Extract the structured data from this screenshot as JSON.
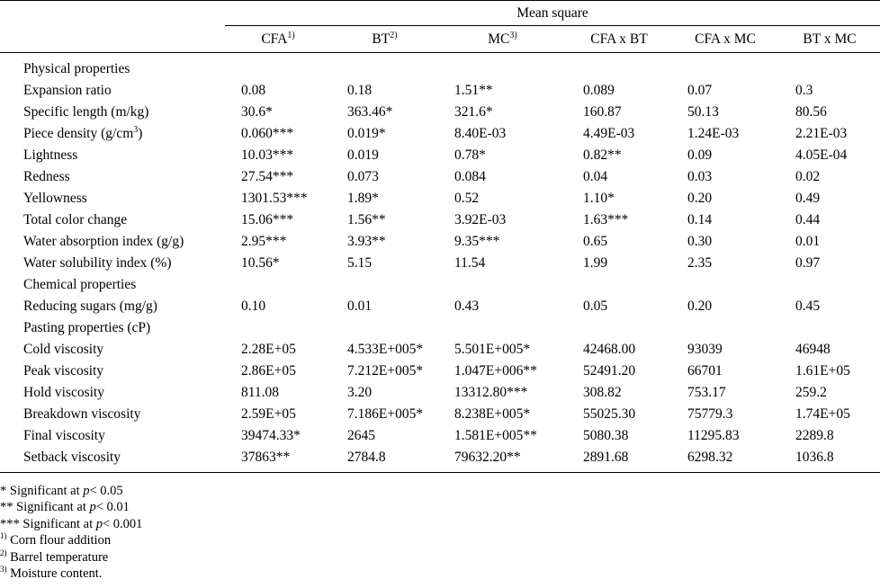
{
  "header": {
    "span_label": "Mean square",
    "columns": [
      {
        "label": "CFA",
        "sup": "1)"
      },
      {
        "label": "BT",
        "sup": "2)"
      },
      {
        "label": "MC",
        "sup": "3)"
      },
      {
        "label": "CFA x BT",
        "sup": ""
      },
      {
        "label": "CFA x MC",
        "sup": ""
      },
      {
        "label": "BT x MC",
        "sup": ""
      }
    ]
  },
  "rows": [
    {
      "label": "Physical properties",
      "section": true,
      "values": [
        "",
        "",
        "",
        "",
        "",
        ""
      ]
    },
    {
      "label": "Expansion ratio",
      "values": [
        "0.08",
        "0.18",
        "1.51**",
        "0.089",
        "0.07",
        "0.3"
      ]
    },
    {
      "label": "Specific length (m/kg)",
      "values": [
        "30.6*",
        "363.46*",
        "321.6*",
        "160.87",
        "50.13",
        "80.56"
      ]
    },
    {
      "label": "Piece density (g/cm",
      "label_sup": "3",
      "label_tail": ")",
      "values": [
        "0.060***",
        "0.019*",
        "8.40E-03",
        "4.49E-03",
        "1.24E-03",
        "2.21E-03"
      ]
    },
    {
      "label": "Lightness",
      "values": [
        "10.03***",
        "0.019",
        "0.78*",
        "0.82**",
        "0.09",
        "4.05E-04"
      ]
    },
    {
      "label": "Redness",
      "values": [
        "27.54***",
        "0.073",
        "0.084",
        "0.04",
        "0.03",
        "0.02"
      ]
    },
    {
      "label": "Yellowness",
      "values": [
        "1301.53***",
        "1.89*",
        "0.52",
        "1.10*",
        "0.20",
        "0.49"
      ]
    },
    {
      "label": "Total color change",
      "values": [
        "15.06***",
        "1.56**",
        "3.92E-03",
        "1.63***",
        "0.14",
        "0.44"
      ]
    },
    {
      "label": "Water absorption index (g/g)",
      "values": [
        "2.95***",
        "3.93**",
        "9.35***",
        "0.65",
        "0.30",
        "0.01"
      ]
    },
    {
      "label": "Water solubility index (%)",
      "values": [
        "10.56*",
        "5.15",
        "11.54",
        "1.99",
        "2.35",
        "0.97"
      ]
    },
    {
      "label": "Chemical properties",
      "section": true,
      "values": [
        "",
        "",
        "",
        "",
        "",
        ""
      ]
    },
    {
      "label": "Reducing sugars (mg/g)",
      "values": [
        "0.10",
        "0.01",
        "0.43",
        "0.05",
        "0.20",
        "0.45"
      ]
    },
    {
      "label": "Pasting properties (cP)",
      "section": true,
      "values": [
        "",
        "",
        "",
        "",
        "",
        ""
      ]
    },
    {
      "label": "Cold viscosity",
      "values": [
        "2.28E+05",
        "4.533E+005*",
        "5.501E+005*",
        "42468.00",
        "93039",
        "46948"
      ]
    },
    {
      "label": "Peak viscosity",
      "values": [
        "2.86E+05",
        "7.212E+005*",
        "1.047E+006**",
        "52491.20",
        "66701",
        "1.61E+05"
      ]
    },
    {
      "label": "Hold viscosity",
      "values": [
        "811.08",
        "3.20",
        "13312.80***",
        "308.82",
        "753.17",
        "259.2"
      ]
    },
    {
      "label": "Breakdown viscosity",
      "values": [
        "2.59E+05",
        "7.186E+005*",
        "8.238E+005*",
        "55025.30",
        "75779.3",
        "1.74E+05"
      ]
    },
    {
      "label": "Final viscosity",
      "values": [
        "39474.33*",
        "2645",
        "1.581E+005**",
        "5080.38",
        "11295.83",
        "2289.8"
      ]
    },
    {
      "label": "Setback viscosity",
      "values": [
        "37863**",
        "2784.8",
        "79632.20**",
        "2891.68",
        "6298.32",
        "1036.8"
      ]
    }
  ],
  "notes": [
    {
      "prefix": "* Significant at ",
      "italic": "p",
      "suffix": "< 0.05",
      "sup": ""
    },
    {
      "prefix": "** Significant at ",
      "italic": "p",
      "suffix": "< 0.01",
      "sup": ""
    },
    {
      "prefix": "*** Significant at ",
      "italic": "p",
      "suffix": "< 0.001",
      "sup": ""
    },
    {
      "prefix": "Corn flour addition",
      "italic": "",
      "suffix": "",
      "sup": "1)"
    },
    {
      "prefix": "Barrel temperature",
      "italic": "",
      "suffix": "",
      "sup": "2)"
    },
    {
      "prefix": "Moisture content.",
      "italic": "",
      "suffix": "",
      "sup": "3)"
    }
  ]
}
